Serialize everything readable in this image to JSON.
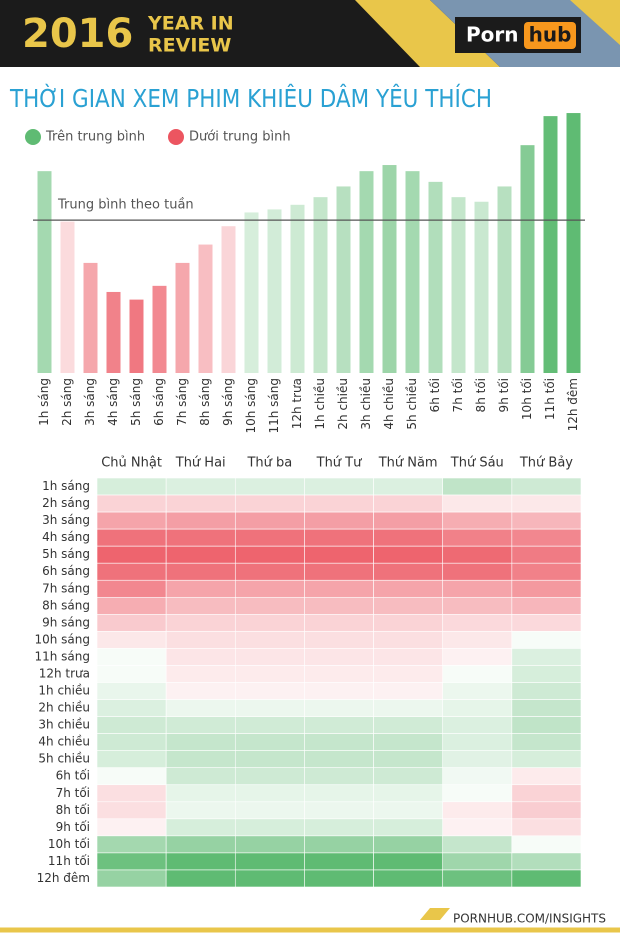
{
  "header": {
    "year": "2016",
    "tagline_1": "YEAR IN",
    "tagline_2": "REVIEW",
    "logo_1": "Porn",
    "logo_2": "hub"
  },
  "chart_data": [
    {
      "type": "bar",
      "title": "THỜI GIAN XEM PHIM KHIÊU DÂM YÊU THÍCH",
      "legend": [
        {
          "label": "Trên trung bình",
          "color": "#5fbb73"
        },
        {
          "label": "Dưới trung bình",
          "color": "#ec5560"
        }
      ],
      "average_line": {
        "label": "Trung bình theo tuần",
        "value": 100
      },
      "categories": [
        "1h sáng",
        "2h sáng",
        "3h sáng",
        "4h sáng",
        "5h sáng",
        "6h sáng",
        "7h sáng",
        "8h sáng",
        "9h sáng",
        "10h sáng",
        "11h sáng",
        "12h trưa",
        "1h chiều",
        "2h chiều",
        "3h chiều",
        "4h chiều",
        "5h chiều",
        "6h tối",
        "7h tối",
        "8h tối",
        "9h tối",
        "10h tối",
        "11h tối",
        "12h đêm"
      ],
      "values": [
        132,
        99,
        72,
        53,
        48,
        57,
        72,
        84,
        96,
        105,
        107,
        110,
        115,
        122,
        132,
        136,
        132,
        125,
        115,
        112,
        122,
        149,
        168,
        170
      ],
      "ylim": [
        0,
        172
      ]
    },
    {
      "type": "heatmap",
      "columns": [
        "Chủ Nhật",
        "Thứ Hai",
        "Thứ ba",
        "Thứ Tư",
        "Thứ Năm",
        "Thứ Sáu",
        "Thứ Bảy"
      ],
      "rows": [
        "1h sáng",
        "2h sáng",
        "3h sáng",
        "4h sáng",
        "5h sáng",
        "6h sáng",
        "7h sáng",
        "8h sáng",
        "9h sáng",
        "10h sáng",
        "11h sáng",
        "12h trưa",
        "1h chiều",
        "2h chiều",
        "3h chiều",
        "4h chiều",
        "5h chiều",
        "6h tối",
        "7h tối",
        "8h tối",
        "9h tối",
        "10h tối",
        "11h tối",
        "12h đêm"
      ],
      "values": [
        [
          112,
          110,
          110,
          110,
          110,
          120,
          115
        ],
        [
          88,
          88,
          88,
          88,
          88,
          95,
          95
        ],
        [
          72,
          70,
          70,
          70,
          70,
          75,
          78
        ],
        [
          55,
          55,
          55,
          55,
          55,
          60,
          62
        ],
        [
          50,
          50,
          50,
          50,
          50,
          52,
          58
        ],
        [
          55,
          55,
          55,
          55,
          55,
          55,
          60
        ],
        [
          62,
          72,
          72,
          72,
          72,
          72,
          68
        ],
        [
          75,
          80,
          80,
          80,
          80,
          80,
          78
        ],
        [
          85,
          88,
          88,
          88,
          88,
          90,
          90
        ],
        [
          95,
          92,
          92,
          92,
          92,
          95,
          100
        ],
        [
          100,
          94,
          94,
          94,
          94,
          98,
          110
        ],
        [
          100,
          96,
          96,
          96,
          96,
          100,
          112
        ],
        [
          105,
          98,
          98,
          98,
          98,
          104,
          115
        ],
        [
          110,
          104,
          104,
          104,
          104,
          106,
          118
        ],
        [
          115,
          114,
          114,
          114,
          114,
          110,
          120
        ],
        [
          115,
          118,
          118,
          118,
          118,
          110,
          118
        ],
        [
          112,
          118,
          118,
          118,
          118,
          108,
          112
        ],
        [
          100,
          115,
          115,
          115,
          115,
          102,
          96
        ],
        [
          92,
          106,
          106,
          106,
          106,
          100,
          88
        ],
        [
          92,
          104,
          104,
          104,
          104,
          96,
          86
        ],
        [
          98,
          112,
          112,
          112,
          112,
          98,
          92
        ],
        [
          130,
          135,
          135,
          135,
          135,
          118,
          100
        ],
        [
          150,
          155,
          155,
          155,
          155,
          132,
          125
        ],
        [
          135,
          155,
          155,
          155,
          155,
          150,
          155
        ]
      ]
    }
  ],
  "footer": "PORNHUB.COM/INSIGHTS"
}
